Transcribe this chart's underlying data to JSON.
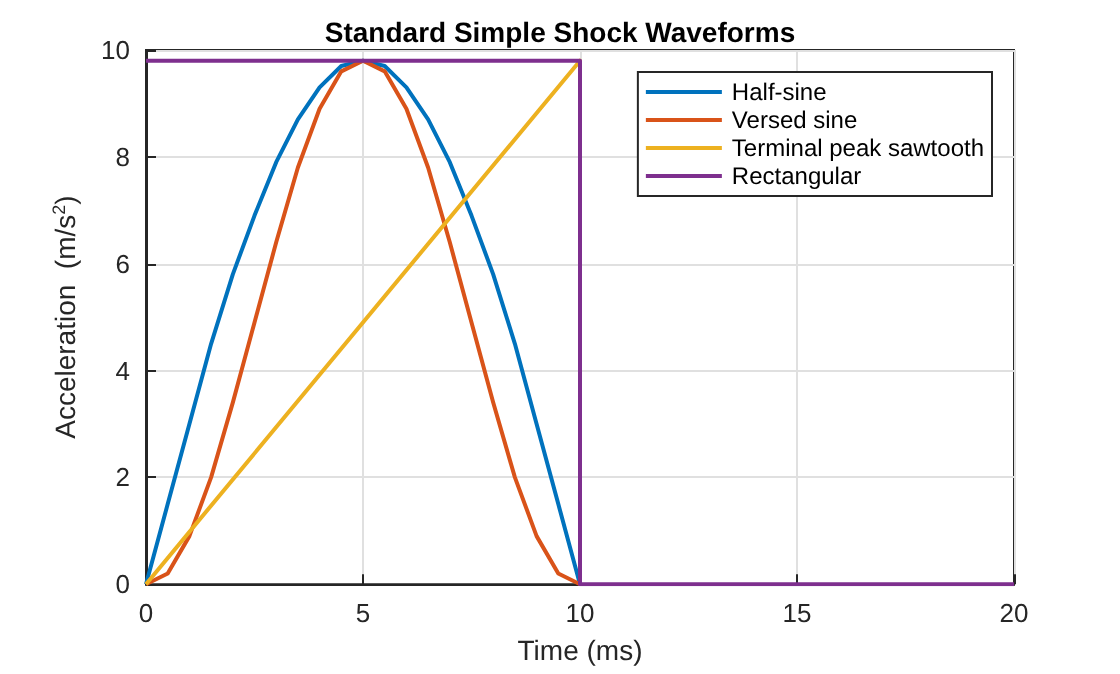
{
  "chart_data": {
    "type": "line",
    "title": "Standard Simple Shock Waveforms",
    "xlabel": "Time (ms)",
    "ylabel": "Acceleration  (m/s$^{2}$)",
    "xlim": [
      0,
      20
    ],
    "xticks": [
      0,
      5,
      10,
      15,
      20
    ],
    "ylim": [
      0,
      10
    ],
    "yticks": [
      0,
      2,
      4,
      6,
      8,
      10
    ],
    "grid": true,
    "legend": "top right",
    "marker": "none",
    "line_style": "solid",
    "series": [
      {
        "name": "Half-sine",
        "color": "#0072bd",
        "x": [
          0,
          0.5,
          1,
          1.5,
          2,
          2.5,
          3,
          3.5,
          4,
          4.5,
          5,
          5.5,
          6,
          6.5,
          7,
          7.5,
          8,
          8.5,
          9,
          9.5,
          10
        ],
        "values": [
          0,
          1.5,
          3.0,
          4.5,
          5.8,
          6.9,
          7.9,
          8.7,
          9.3,
          9.7,
          9.8,
          9.7,
          9.3,
          8.7,
          7.9,
          6.9,
          5.8,
          4.5,
          3.0,
          1.5,
          0
        ]
      },
      {
        "name": "Versed sine",
        "color": "#d95319",
        "x": [
          0,
          0.5,
          1,
          1.5,
          2,
          2.5,
          3,
          3.5,
          4,
          4.5,
          5,
          5.5,
          6,
          6.5,
          7,
          7.5,
          8,
          8.5,
          9,
          9.5,
          10
        ],
        "values": [
          0,
          0.2,
          0.9,
          2.0,
          3.4,
          4.9,
          6.4,
          7.8,
          8.9,
          9.6,
          9.8,
          9.6,
          8.9,
          7.8,
          6.4,
          4.9,
          3.4,
          2.0,
          0.9,
          0.2,
          0
        ]
      },
      {
        "name": "Terminal peak sawtooth",
        "color": "#edb120",
        "x": [
          0,
          10,
          10
        ],
        "values": [
          0,
          9.8,
          0
        ]
      },
      {
        "name": "Rectangular",
        "color": "#7e2f8e",
        "x": [
          0,
          10,
          10,
          20
        ],
        "values": [
          9.8,
          9.8,
          0,
          0
        ]
      }
    ]
  }
}
